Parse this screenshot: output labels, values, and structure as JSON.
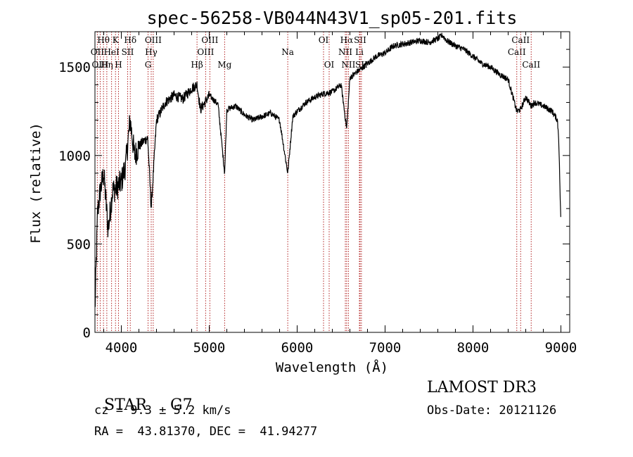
{
  "chart_data": {
    "type": "line",
    "title": "spec-56258-VB044N43V1_sp05-201.fits",
    "xlabel": "Wavelength (Å)",
    "ylabel": "Flux (relative)",
    "xlim": [
      3700,
      9100
    ],
    "ylim": [
      0,
      1700
    ],
    "x_ticks": [
      4000,
      5000,
      6000,
      7000,
      8000,
      9000
    ],
    "x_tick_labels": [
      "4000",
      "5000",
      "6000",
      "7000",
      "8000",
      "9000"
    ],
    "y_ticks": [
      0,
      500,
      1000,
      1500
    ],
    "y_tick_labels": [
      "0",
      "500",
      "1000",
      "1500"
    ],
    "series": [
      {
        "name": "flux",
        "color": "#000000",
        "x": [
          3700,
          3730,
          3760,
          3800,
          3850,
          3900,
          3950,
          4000,
          4050,
          4100,
          4150,
          4200,
          4250,
          4300,
          4340,
          4400,
          4500,
          4600,
          4700,
          4800,
          4861,
          4900,
          5000,
          5100,
          5175,
          5200,
          5300,
          5400,
          5500,
          5600,
          5700,
          5800,
          5893,
          5950,
          6000,
          6100,
          6200,
          6300,
          6400,
          6500,
          6563,
          6600,
          6700,
          6800,
          6900,
          7000,
          7100,
          7200,
          7300,
          7400,
          7500,
          7600,
          7650,
          7700,
          7800,
          7900,
          8000,
          8100,
          8200,
          8300,
          8400,
          8498,
          8542,
          8600,
          8662,
          8700,
          8800,
          8900,
          8960,
          8975,
          8990,
          9000
        ],
        "y": [
          120,
          680,
          800,
          900,
          580,
          800,
          820,
          850,
          950,
          1200,
          1000,
          1050,
          1080,
          1100,
          700,
          1200,
          1300,
          1340,
          1320,
          1380,
          1400,
          1260,
          1340,
          1290,
          900,
          1260,
          1280,
          1230,
          1200,
          1220,
          1240,
          1200,
          900,
          1220,
          1250,
          1300,
          1330,
          1350,
          1360,
          1400,
          1150,
          1440,
          1480,
          1520,
          1560,
          1580,
          1620,
          1630,
          1640,
          1650,
          1640,
          1660,
          1680,
          1650,
          1620,
          1600,
          1560,
          1520,
          1500,
          1460,
          1430,
          1250,
          1260,
          1330,
          1280,
          1300,
          1280,
          1250,
          1200,
          1100,
          800,
          600
        ]
      }
    ],
    "line_markers": [
      {
        "wavelength": 3727,
        "labels": [
          "OII"
        ],
        "row": 2
      },
      {
        "wavelength": 3760,
        "labels": [
          "OIII"
        ],
        "row": 3
      },
      {
        "wavelength": 3797,
        "labels": [
          "Hθ"
        ],
        "row": 1
      },
      {
        "wavelength": 3835,
        "labels": [
          "Hη"
        ],
        "row": 3
      },
      {
        "wavelength": 3889,
        "labels": [
          "HeI"
        ],
        "row": 2
      },
      {
        "wavelength": 3934,
        "labels": [
          "K"
        ],
        "row": 1
      },
      {
        "wavelength": 3968,
        "labels": [
          "H"
        ],
        "row": 3
      },
      {
        "wavelength": 4072,
        "labels": [
          "SII"
        ],
        "row": 2
      },
      {
        "wavelength": 4102,
        "labels": [
          "Hδ"
        ],
        "row": 1
      },
      {
        "wavelength": 4304,
        "labels": [
          "G"
        ],
        "row": 3
      },
      {
        "wavelength": 4340,
        "labels": [
          "Hγ"
        ],
        "row": 2
      },
      {
        "wavelength": 4363,
        "labels": [
          "OIII"
        ],
        "row": 1
      },
      {
        "wavelength": 4861,
        "labels": [
          "Hβ"
        ],
        "row": 3
      },
      {
        "wavelength": 4959,
        "labels": [
          "OIII"
        ],
        "row": 2
      },
      {
        "wavelength": 5007,
        "labels": [
          "OIII"
        ],
        "row": 1
      },
      {
        "wavelength": 5175,
        "labels": [
          "Mg"
        ],
        "row": 3
      },
      {
        "wavelength": 5893,
        "labels": [
          "Na"
        ],
        "row": 2
      },
      {
        "wavelength": 6300,
        "labels": [
          "OI"
        ],
        "row": 1
      },
      {
        "wavelength": 6364,
        "labels": [
          "OI"
        ],
        "row": 3
      },
      {
        "wavelength": 6548,
        "labels": [
          "NII"
        ],
        "row": 2
      },
      {
        "wavelength": 6563,
        "labels": [
          "Hα"
        ],
        "row": 1
      },
      {
        "wavelength": 6583,
        "labels": [
          "NII"
        ],
        "row": 3
      },
      {
        "wavelength": 6708,
        "labels": [
          "Li"
        ],
        "row": 2
      },
      {
        "wavelength": 6716,
        "labels": [
          "SII"
        ],
        "row": 1
      },
      {
        "wavelength": 6731,
        "labels": [
          "SII"
        ],
        "row": 3
      },
      {
        "wavelength": 8498,
        "labels": [
          "CaII"
        ],
        "row": 2
      },
      {
        "wavelength": 8542,
        "labels": [
          "CaII"
        ],
        "row": 1
      },
      {
        "wavelength": 8662,
        "labels": [
          "CaII"
        ],
        "row": 3
      }
    ]
  },
  "info": {
    "class_label": "STAR",
    "subclass": "G7",
    "survey": "LAMOST DR3",
    "cz": "cz = 9.3 ± 5.2 km/s",
    "obs_date": "Obs-Date: 20121126",
    "coords": "RA =  43.81370, DEC =  41.94277"
  },
  "colors": {
    "spectrum": "#000000",
    "marker_line": "#b22222",
    "axis": "#000000"
  }
}
